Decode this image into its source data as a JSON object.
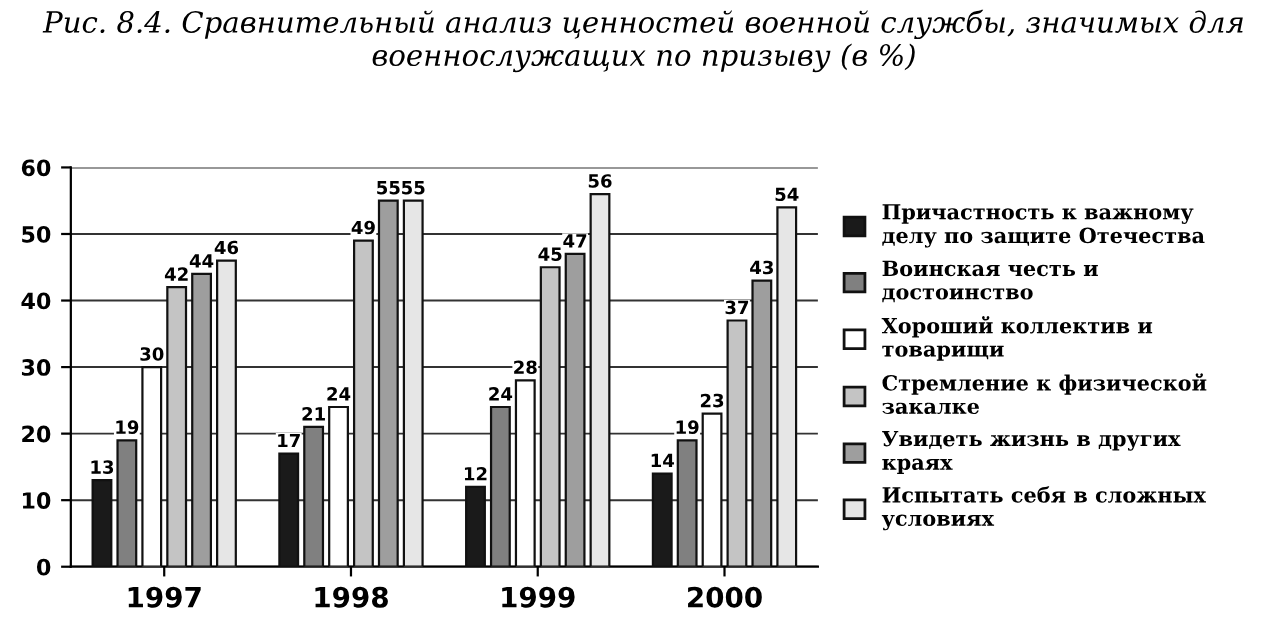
{
  "chart_data": {
    "type": "bar",
    "title": "Рис. 8.4. Сравнительный анализ ценностей военной службы, значимых для военнослужащих по призыву (в %)",
    "categories": [
      "1997",
      "1998",
      "1999",
      "2000"
    ],
    "series": [
      {
        "name": "Причастность к важному делу по защите Отечества",
        "color": "#1a1a1a",
        "values": [
          13,
          17,
          12,
          14
        ]
      },
      {
        "name": "Воинская честь и достоинство",
        "color": "#808080",
        "values": [
          19,
          21,
          24,
          19
        ]
      },
      {
        "name": "Хороший коллектив и товарищи",
        "color": "#ffffff",
        "values": [
          30,
          24,
          28,
          23
        ]
      },
      {
        "name": "Стремление к физической закалке",
        "color": "#c4c4c4",
        "values": [
          42,
          49,
          45,
          37
        ]
      },
      {
        "name": "Увидеть жизнь в других краях",
        "color": "#9e9e9e",
        "values": [
          44,
          55,
          47,
          43
        ]
      },
      {
        "name": "Испытать себя в сложных условиях",
        "color": "#e6e6e6",
        "values": [
          46,
          55,
          56,
          54
        ]
      }
    ],
    "ylim": [
      0,
      60
    ],
    "yticks": [
      0,
      10,
      20,
      30,
      40,
      50,
      60
    ],
    "grid": "y",
    "legend": "right",
    "data_labels": true
  }
}
